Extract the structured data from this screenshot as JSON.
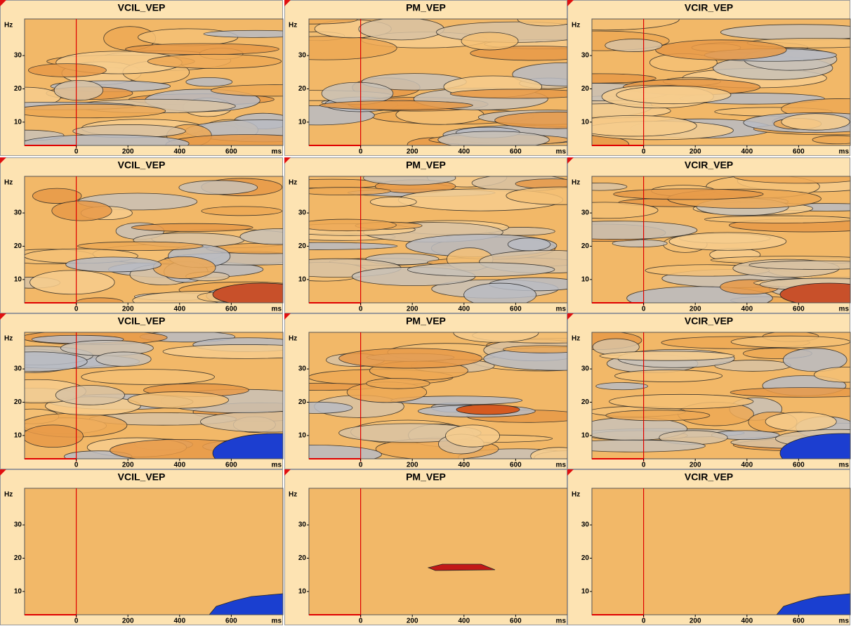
{
  "chart_data": [
    {
      "type": "contour",
      "title": "VCIL_VEP",
      "xlabel": "ms",
      "ylabel": "Hz",
      "xlim": [
        -200,
        800
      ],
      "ylim": [
        3,
        41
      ],
      "xticks": [
        0,
        200,
        400,
        600
      ],
      "yticks": [
        10,
        20,
        30
      ],
      "vline": 0
    },
    {
      "type": "contour",
      "title": "PM_VEP",
      "xlabel": "ms",
      "ylabel": "Hz",
      "xlim": [
        -200,
        800
      ],
      "ylim": [
        3,
        41
      ],
      "xticks": [
        0,
        200,
        400,
        600
      ],
      "yticks": [
        10,
        20,
        30
      ],
      "vline": 0
    },
    {
      "type": "contour",
      "title": "VCIR_VEP",
      "xlabel": "ms",
      "ylabel": "Hz",
      "xlim": [
        -200,
        800
      ],
      "ylim": [
        3,
        41
      ],
      "xticks": [
        0,
        200,
        400,
        600
      ],
      "yticks": [
        10,
        20,
        30
      ],
      "vline": 0
    },
    {
      "type": "contour",
      "title": "VCIL_VEP",
      "xlabel": "ms",
      "ylabel": "Hz",
      "xlim": [
        -200,
        800
      ],
      "ylim": [
        3,
        41
      ],
      "xticks": [
        0,
        200,
        400,
        600
      ],
      "yticks": [
        10,
        20,
        30
      ],
      "vline": 0
    },
    {
      "type": "contour",
      "title": "PM_VEP",
      "xlabel": "ms",
      "ylabel": "Hz",
      "xlim": [
        -200,
        800
      ],
      "ylim": [
        3,
        41
      ],
      "xticks": [
        0,
        200,
        400,
        600
      ],
      "yticks": [
        10,
        20,
        30
      ],
      "vline": 0
    },
    {
      "type": "contour",
      "title": "VCIR_VEP",
      "xlabel": "ms",
      "ylabel": "Hz",
      "xlim": [
        -200,
        800
      ],
      "ylim": [
        3,
        41
      ],
      "xticks": [
        0,
        200,
        400,
        600
      ],
      "yticks": [
        10,
        20,
        30
      ],
      "vline": 0
    },
    {
      "type": "contour",
      "title": "VCIL_VEP",
      "xlabel": "ms",
      "ylabel": "Hz",
      "xlim": [
        -200,
        800
      ],
      "ylim": [
        3,
        41
      ],
      "xticks": [
        0,
        200,
        400,
        600
      ],
      "yticks": [
        10,
        20,
        30
      ],
      "vline": 0
    },
    {
      "type": "contour",
      "title": "PM_VEP",
      "xlabel": "ms",
      "ylabel": "Hz",
      "xlim": [
        -200,
        800
      ],
      "ylim": [
        3,
        41
      ],
      "xticks": [
        0,
        200,
        400,
        600
      ],
      "yticks": [
        10,
        20,
        30
      ],
      "vline": 0
    },
    {
      "type": "contour",
      "title": "VCIR_VEP",
      "xlabel": "ms",
      "ylabel": "Hz",
      "xlim": [
        -200,
        800
      ],
      "ylim": [
        3,
        41
      ],
      "xticks": [
        0,
        200,
        400,
        600
      ],
      "yticks": [
        10,
        20,
        30
      ],
      "vline": 0
    },
    {
      "type": "contour",
      "title": "VCIL_VEP",
      "xlabel": "ms",
      "ylabel": "Hz",
      "xlim": [
        -200,
        800
      ],
      "ylim": [
        3,
        41
      ],
      "xticks": [
        0,
        200,
        400,
        600
      ],
      "yticks": [
        10,
        20,
        30
      ],
      "vline": 0
    },
    {
      "type": "contour",
      "title": "PM_VEP",
      "xlabel": "ms",
      "ylabel": "Hz",
      "xlim": [
        -200,
        800
      ],
      "ylim": [
        3,
        41
      ],
      "xticks": [
        0,
        200,
        400,
        600
      ],
      "yticks": [
        10,
        20,
        30
      ],
      "vline": 0
    },
    {
      "type": "contour",
      "title": "VCIR_VEP",
      "xlabel": "ms",
      "ylabel": "Hz",
      "xlim": [
        -200,
        800
      ],
      "ylim": [
        3,
        41
      ],
      "xticks": [
        0,
        200,
        400,
        600
      ],
      "yticks": [
        10,
        20,
        30
      ],
      "vline": 0
    }
  ]
}
